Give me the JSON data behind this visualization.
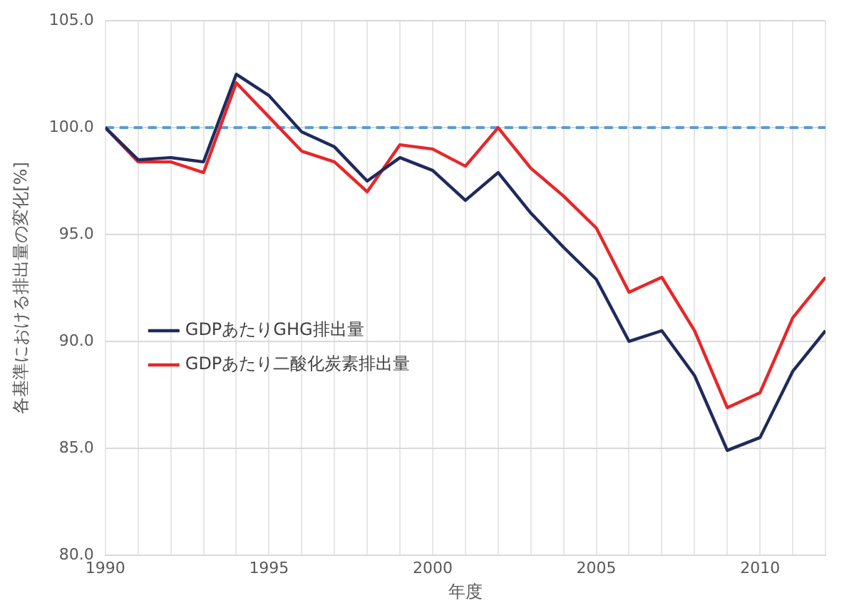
{
  "chart_data": {
    "type": "line",
    "xlabel": "年度",
    "ylabel": "各基準における排出量の変化[%]",
    "x": [
      1990,
      1991,
      1992,
      1993,
      1994,
      1995,
      1996,
      1997,
      1998,
      1999,
      2000,
      2001,
      2002,
      2003,
      2004,
      2005,
      2006,
      2007,
      2008,
      2009,
      2010,
      2011,
      2012
    ],
    "series": [
      {
        "name": "GDPあたりGHG排出量",
        "color": "#1f2a5c",
        "values": [
          100,
          98.5,
          98.6,
          98.4,
          102.5,
          101.5,
          99.8,
          99.1,
          97.5,
          98.6,
          98.0,
          96.6,
          97.9,
          96.0,
          94.4,
          92.9,
          90.0,
          90.5,
          88.4,
          84.9,
          85.5,
          88.6,
          90.5
        ]
      },
      {
        "name": "GDPあたり二酸化炭素排出量",
        "color": "#e8262a",
        "values": [
          100,
          98.4,
          98.4,
          97.9,
          102.1,
          100.5,
          98.9,
          98.4,
          97.0,
          99.2,
          99.0,
          98.2,
          100.0,
          98.1,
          96.8,
          95.3,
          92.3,
          93.0,
          90.5,
          86.9,
          87.6,
          91.1,
          93.0
        ]
      }
    ],
    "xlim": [
      1990,
      2012
    ],
    "xticks": [
      1990,
      {
        "value": 1991,
        "label": null
      },
      {
        "value": 1992,
        "label": null
      },
      {
        "value": 1993,
        "label": null
      },
      {
        "value": 1994,
        "label": null
      },
      1995,
      {
        "value": 1996,
        "label": null
      },
      {
        "value": 1997,
        "label": null
      },
      {
        "value": 1998,
        "label": null
      },
      {
        "value": 1999,
        "label": null
      },
      2000,
      {
        "value": 2001,
        "label": null
      },
      {
        "value": 2002,
        "label": null
      },
      {
        "value": 2003,
        "label": null
      },
      {
        "value": 2004,
        "label": null
      },
      2005,
      {
        "value": 2006,
        "label": null
      },
      {
        "value": 2007,
        "label": null
      },
      {
        "value": 2008,
        "label": null
      },
      {
        "value": 2009,
        "label": null
      },
      2010,
      {
        "value": 2011,
        "label": null
      },
      {
        "value": 2012,
        "label": null
      }
    ],
    "ylim": [
      80,
      105
    ],
    "yticks": [
      {
        "value": 80,
        "label": "80.0"
      },
      {
        "value": 85,
        "label": "85.0"
      },
      {
        "value": 90,
        "label": "90.0"
      },
      {
        "value": 95,
        "label": "95.0"
      },
      {
        "value": 100,
        "label": "100.0"
      },
      {
        "value": 105,
        "label": "105.0"
      }
    ],
    "ref_lines": [
      {
        "axis": "y",
        "value": 100,
        "color": "#5b9bd5",
        "line_style": "dashed"
      }
    ],
    "grid": true,
    "legend": "left",
    "marker": "none",
    "line_style": "solid"
  }
}
